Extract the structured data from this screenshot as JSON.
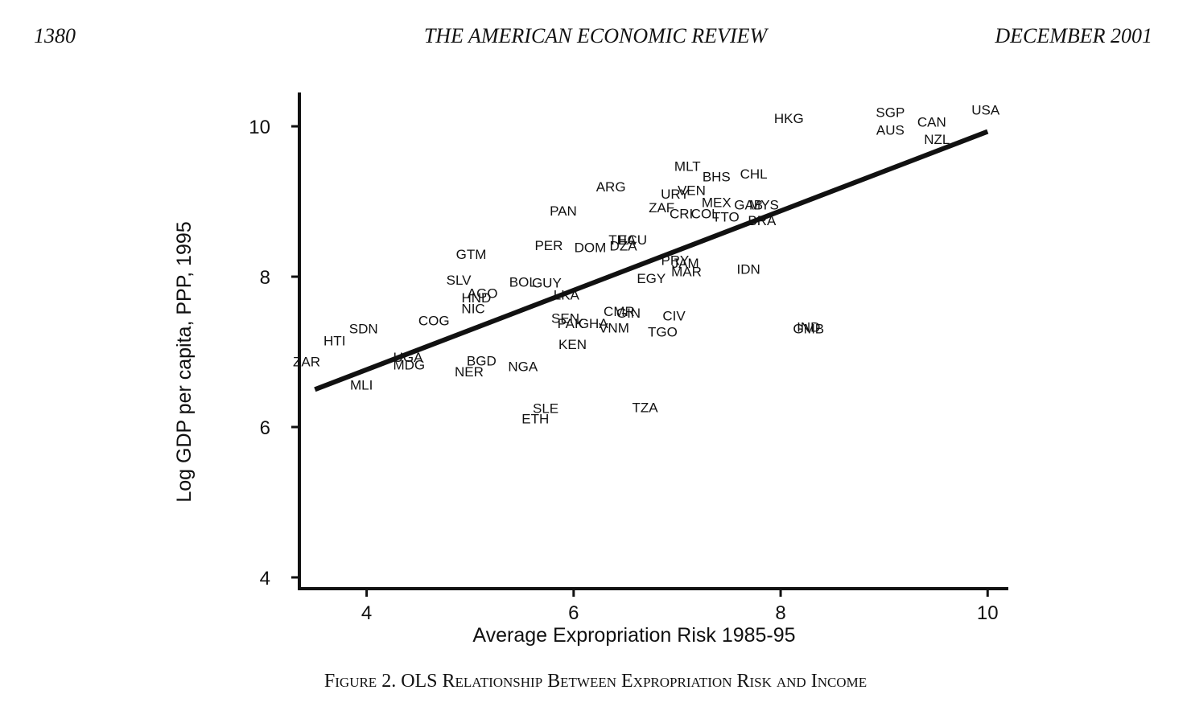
{
  "header": {
    "page_number": "1380",
    "journal": "THE AMERICAN ECONOMIC REVIEW",
    "issue": "DECEMBER 2001"
  },
  "caption": "Figure 2. OLS Relationship Between Expropriation Risk and Income",
  "chart_data": {
    "type": "scatter",
    "title": "",
    "xlabel": "Average Expropriation Risk 1985-95",
    "ylabel": "Log GDP per capita, PPP, 1995",
    "xlim": [
      3.35,
      10.2
    ],
    "ylim": [
      3.85,
      10.45
    ],
    "xticks": [
      4,
      6,
      8,
      10
    ],
    "yticks": [
      4,
      6,
      8,
      10
    ],
    "grid": false,
    "legend": "none",
    "marker": "country-code text labels",
    "points": [
      {
        "label": "USA",
        "x": 9.98,
        "y": 10.22
      },
      {
        "label": "SGP",
        "x": 9.06,
        "y": 10.19
      },
      {
        "label": "AUS",
        "x": 9.06,
        "y": 9.95
      },
      {
        "label": "CAN",
        "x": 9.46,
        "y": 10.06
      },
      {
        "label": "NZL",
        "x": 9.51,
        "y": 9.83
      },
      {
        "label": "HKG",
        "x": 8.08,
        "y": 10.11
      },
      {
        "label": "MLT",
        "x": 7.1,
        "y": 9.47
      },
      {
        "label": "BHS",
        "x": 7.38,
        "y": 9.33
      },
      {
        "label": "CHL",
        "x": 7.74,
        "y": 9.37
      },
      {
        "label": "ARG",
        "x": 6.36,
        "y": 9.2
      },
      {
        "label": "URY",
        "x": 6.98,
        "y": 9.1
      },
      {
        "label": "VEN",
        "x": 7.14,
        "y": 9.15
      },
      {
        "label": "MEX",
        "x": 7.38,
        "y": 8.99
      },
      {
        "label": "GAB",
        "x": 7.69,
        "y": 8.96
      },
      {
        "label": "MYS",
        "x": 7.84,
        "y": 8.96
      },
      {
        "label": "ZAF",
        "x": 6.85,
        "y": 8.92
      },
      {
        "label": "CRI",
        "x": 7.04,
        "y": 8.84
      },
      {
        "label": "COL",
        "x": 7.27,
        "y": 8.84
      },
      {
        "label": "TTO",
        "x": 7.47,
        "y": 8.8
      },
      {
        "label": "BRA",
        "x": 7.82,
        "y": 8.75
      },
      {
        "label": "PAN",
        "x": 5.9,
        "y": 8.88
      },
      {
        "label": "PER",
        "x": 5.76,
        "y": 8.42
      },
      {
        "label": "DOM",
        "x": 6.16,
        "y": 8.39
      },
      {
        "label": "THA",
        "x": 6.47,
        "y": 8.49
      },
      {
        "label": "ECU",
        "x": 6.57,
        "y": 8.49
      },
      {
        "label": "DZA",
        "x": 6.48,
        "y": 8.41
      },
      {
        "label": "PRY",
        "x": 6.98,
        "y": 8.22
      },
      {
        "label": "JAM",
        "x": 7.08,
        "y": 8.18
      },
      {
        "label": "MAR",
        "x": 7.09,
        "y": 8.07
      },
      {
        "label": "IDN",
        "x": 7.69,
        "y": 8.1
      },
      {
        "label": "EGY",
        "x": 6.75,
        "y": 7.98
      },
      {
        "label": "GTM",
        "x": 5.01,
        "y": 8.3
      },
      {
        "label": "SLV",
        "x": 4.89,
        "y": 7.96
      },
      {
        "label": "BOL",
        "x": 5.51,
        "y": 7.93
      },
      {
        "label": "GUY",
        "x": 5.74,
        "y": 7.92
      },
      {
        "label": "AGO",
        "x": 5.12,
        "y": 7.78
      },
      {
        "label": "HND",
        "x": 5.06,
        "y": 7.72
      },
      {
        "label": "NIC",
        "x": 5.03,
        "y": 7.58
      },
      {
        "label": "LKA",
        "x": 5.93,
        "y": 7.76
      },
      {
        "label": "CMR",
        "x": 6.44,
        "y": 7.54
      },
      {
        "label": "GIN",
        "x": 6.53,
        "y": 7.52
      },
      {
        "label": "CIV",
        "x": 6.97,
        "y": 7.48
      },
      {
        "label": "SEN",
        "x": 5.92,
        "y": 7.45
      },
      {
        "label": "PAK",
        "x": 5.97,
        "y": 7.38
      },
      {
        "label": "GHA",
        "x": 6.19,
        "y": 7.38
      },
      {
        "label": "VNM",
        "x": 6.39,
        "y": 7.32
      },
      {
        "label": "TGO",
        "x": 6.86,
        "y": 7.27
      },
      {
        "label": "IND",
        "x": 8.27,
        "y": 7.33
      },
      {
        "label": "GMB",
        "x": 8.27,
        "y": 7.31
      },
      {
        "label": "KEN",
        "x": 5.99,
        "y": 7.1
      },
      {
        "label": "COG",
        "x": 4.65,
        "y": 7.42
      },
      {
        "label": "SDN",
        "x": 3.97,
        "y": 7.31
      },
      {
        "label": "HTI",
        "x": 3.69,
        "y": 7.15
      },
      {
        "label": "ZAR",
        "x": 3.42,
        "y": 6.87
      },
      {
        "label": "UGA",
        "x": 4.4,
        "y": 6.93
      },
      {
        "label": "MDG",
        "x": 4.41,
        "y": 6.83
      },
      {
        "label": "BGD",
        "x": 5.11,
        "y": 6.88
      },
      {
        "label": "NER",
        "x": 4.99,
        "y": 6.74
      },
      {
        "label": "NGA",
        "x": 5.51,
        "y": 6.81
      },
      {
        "label": "MLI",
        "x": 3.95,
        "y": 6.56
      },
      {
        "label": "SLE",
        "x": 5.73,
        "y": 6.25
      },
      {
        "label": "ETH",
        "x": 5.63,
        "y": 6.11
      },
      {
        "label": "TZA",
        "x": 6.69,
        "y": 6.26
      }
    ],
    "fit_line": {
      "x": [
        3.5,
        10.0
      ],
      "y": [
        6.5,
        9.93
      ]
    }
  }
}
